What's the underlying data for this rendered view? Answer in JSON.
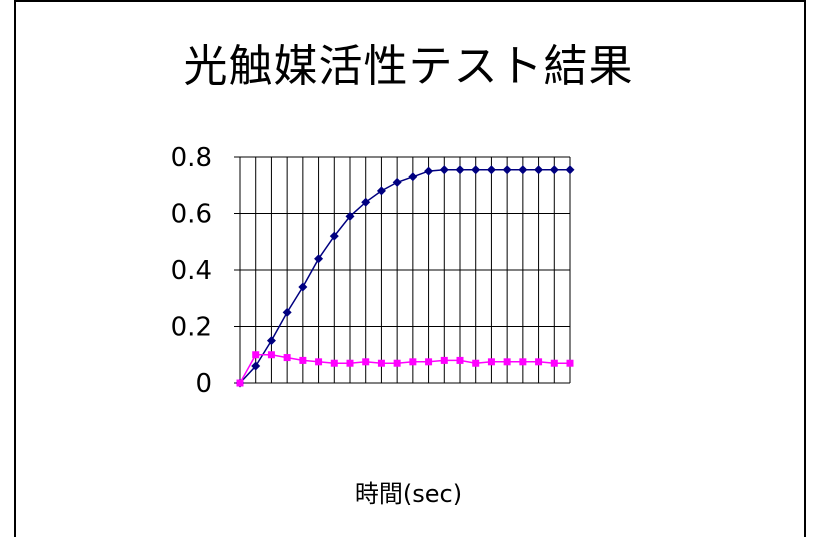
{
  "chart_data": {
    "type": "line",
    "title": "光触媒活性テスト結果",
    "xlabel": "時間(sec)",
    "ylabel": "",
    "ylim": [
      0,
      0.8
    ],
    "yticks": [
      "0",
      "0.2",
      "0.4",
      "0.6",
      "0.8"
    ],
    "x": [
      0,
      1,
      2,
      3,
      4,
      5,
      6,
      7,
      8,
      9,
      10,
      11,
      12,
      13,
      14,
      15,
      16,
      17,
      18,
      19,
      20,
      21
    ],
    "grid": true,
    "series": [
      {
        "color": "#000080",
        "marker": "diamond",
        "values": [
          0.0,
          0.06,
          0.15,
          0.25,
          0.34,
          0.44,
          0.52,
          0.59,
          0.64,
          0.68,
          0.71,
          0.73,
          0.75,
          0.755,
          0.755,
          0.755,
          0.755,
          0.755,
          0.755,
          0.755,
          0.755,
          0.755
        ]
      },
      {
        "color": "#ff00ff",
        "marker": "square",
        "values": [
          0.0,
          0.1,
          0.1,
          0.09,
          0.08,
          0.075,
          0.07,
          0.07,
          0.075,
          0.07,
          0.07,
          0.075,
          0.075,
          0.08,
          0.08,
          0.07,
          0.075,
          0.075,
          0.075,
          0.075,
          0.07,
          0.07
        ]
      }
    ]
  }
}
